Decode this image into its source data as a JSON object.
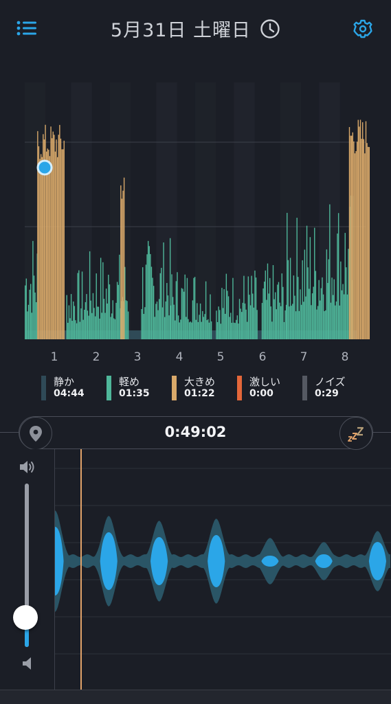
{
  "header": {
    "title": "5月31日 土曜日",
    "menu_icon": "list-icon",
    "clock_icon": "clock-icon",
    "settings_icon": "gear-icon"
  },
  "colors": {
    "quiet": "#2f4a57",
    "light": "#4fb79a",
    "loud": "#d9a96a",
    "epic": "#e4673a",
    "noise": "#555962",
    "accent": "#2ba6e8",
    "playhead": "#e2a36a"
  },
  "chart_data": {
    "type": "area",
    "x_ticks": [
      "1",
      "2",
      "3",
      "4",
      "5",
      "6",
      "7",
      "8"
    ],
    "series": [
      {
        "name": "静か",
        "segments": [
          [
            0.0,
            8.0,
            0.16
          ]
        ]
      },
      {
        "name": "軽め",
        "segments": [
          [
            0.0,
            0.3,
            0.45
          ],
          [
            1.0,
            1.5,
            0.28
          ],
          [
            1.5,
            2.5,
            0.35
          ],
          [
            2.8,
            3.5,
            0.4
          ],
          [
            3.5,
            4.5,
            0.3
          ],
          [
            4.6,
            5.6,
            0.28
          ],
          [
            5.7,
            6.3,
            0.3
          ],
          [
            6.3,
            7.3,
            0.5
          ],
          [
            7.3,
            7.9,
            0.6
          ]
        ]
      },
      {
        "name": "大きめ",
        "segments": [
          [
            0.3,
            0.95,
            0.97
          ],
          [
            2.3,
            2.4,
            0.75
          ],
          [
            7.8,
            8.3,
            1.0
          ]
        ]
      },
      {
        "name": "激しい",
        "segments": []
      },
      {
        "name": "ノイズ",
        "segments": []
      }
    ],
    "marker_x": 0.48
  },
  "legend": [
    {
      "label": "静か",
      "value": "04:44",
      "color": "#2f4a57"
    },
    {
      "label": "軽め",
      "value": "01:35",
      "color": "#4fb79a"
    },
    {
      "label": "大きめ",
      "value": "01:22",
      "color": "#d9a96a"
    },
    {
      "label": "激しい",
      "value": "0:00",
      "color": "#e4673a"
    },
    {
      "label": "ノイズ",
      "value": "0:29",
      "color": "#555962"
    }
  ],
  "player": {
    "time": "0:49:02",
    "pin_icon": "location-pin-icon",
    "zzz_icon": "sleep-zzz-icon",
    "volume_level": 0.18,
    "volume_up_icon": "speaker-high-icon",
    "volume_down_icon": "speaker-low-icon",
    "waveform_pulses": [
      0.0,
      0.16,
      0.31,
      0.48,
      0.64,
      0.8,
      0.96
    ]
  }
}
